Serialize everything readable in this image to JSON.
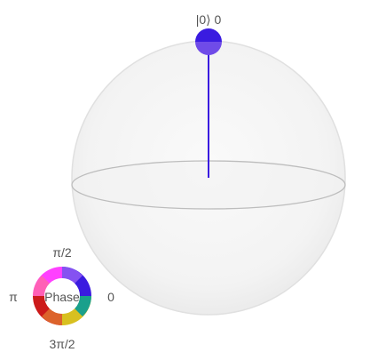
{
  "bloch": {
    "state_label": "|0⟩ 0",
    "vector_color": "#3a1be0",
    "sphere_fill": "#f6f6f6",
    "sphere_edge": "#d9d9d9",
    "equator_stroke": "#bdbdbd",
    "marker_top_color": "#3a1be0",
    "marker_bottom_color": "#6f4be8",
    "state_vector": {
      "theta": "0",
      "phi": "0"
    }
  },
  "phase_wheel": {
    "center_label": "Phase",
    "label_top": "π/2",
    "label_left": "π",
    "label_right": "0",
    "label_bottom": "3π/2",
    "colors": {
      "phase_0": "#3a1be0",
      "phase_pi_over_2": "#ff40ff",
      "phase_pi": "#cc1a1a",
      "phase_3pi_over_2": "#d8c020",
      "phase_7pi_over_4": "#1aa08c"
    }
  }
}
